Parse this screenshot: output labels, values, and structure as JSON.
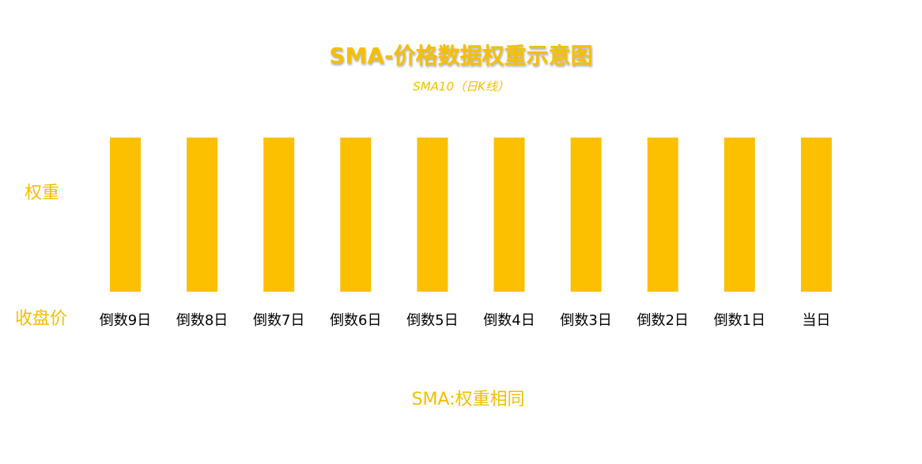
{
  "diagram": {
    "title": "SMA-价格数据权重示意图",
    "subtitle": "SMA10（日K线）",
    "y_label": "权重",
    "x_label": "收盘价",
    "categories": [
      "倒数9日",
      "倒数8日",
      "倒数7日",
      "倒数6日",
      "倒数5日",
      "倒数4日",
      "倒数3日",
      "倒数2日",
      "倒数1日",
      "当日"
    ],
    "footer": "SMA:权重相同"
  }
}
